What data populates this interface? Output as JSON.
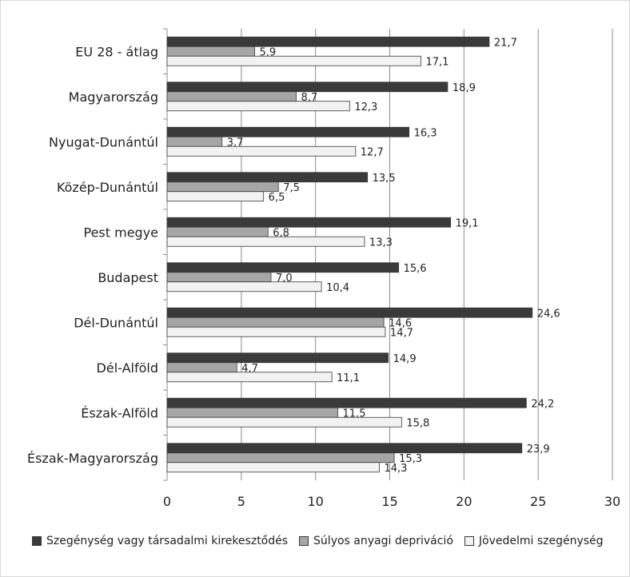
{
  "chart_data": {
    "type": "bar",
    "orientation": "horizontal",
    "categories": [
      "EU 28 - átlag",
      "Magyarország",
      "Nyugat-Dunántúl",
      "Közép-Dunántúl",
      "Pest megye",
      "Budapest",
      "Dél-Dunántúl",
      "Dél-Alföld",
      "Észak-Alföld",
      "Észak-Magyarország"
    ],
    "series": [
      {
        "name": "Szegénység vagy társadalmi kirekesztődés",
        "color": "#3a3a3a",
        "values": [
          21.7,
          18.9,
          16.3,
          13.5,
          19.1,
          15.6,
          24.6,
          14.9,
          24.2,
          23.9
        ],
        "labels": [
          "21,7",
          "18,9",
          "16,3",
          "13,5",
          "19,1",
          "15,6",
          "24,6",
          "14,9",
          "24,2",
          "23,9"
        ]
      },
      {
        "name": "Súlyos anyagi depriváció",
        "color": "#a6a6a6",
        "values": [
          5.9,
          8.7,
          3.7,
          7.5,
          6.8,
          7.0,
          14.6,
          4.7,
          11.5,
          15.3
        ],
        "labels": [
          "5,9",
          "8,7",
          "3,7",
          "7,5",
          "6,8",
          "7,0",
          "14,6",
          "4,7",
          "11,5",
          "15,3"
        ]
      },
      {
        "name": "Jövedelmi szegénység",
        "color": "#f2f2f2",
        "values": [
          17.1,
          12.3,
          12.7,
          6.5,
          13.3,
          10.4,
          14.7,
          11.1,
          15.8,
          14.3
        ],
        "labels": [
          "17,1",
          "12,3",
          "12,7",
          "6,5",
          "13,3",
          "10,4",
          "14,7",
          "11,1",
          "15,8",
          "14,3"
        ]
      }
    ],
    "xlim": [
      0,
      30
    ],
    "xticks": [
      "0",
      "5",
      "10",
      "15",
      "20",
      "25",
      "30"
    ],
    "grid": true,
    "legend_position": "bottom"
  }
}
